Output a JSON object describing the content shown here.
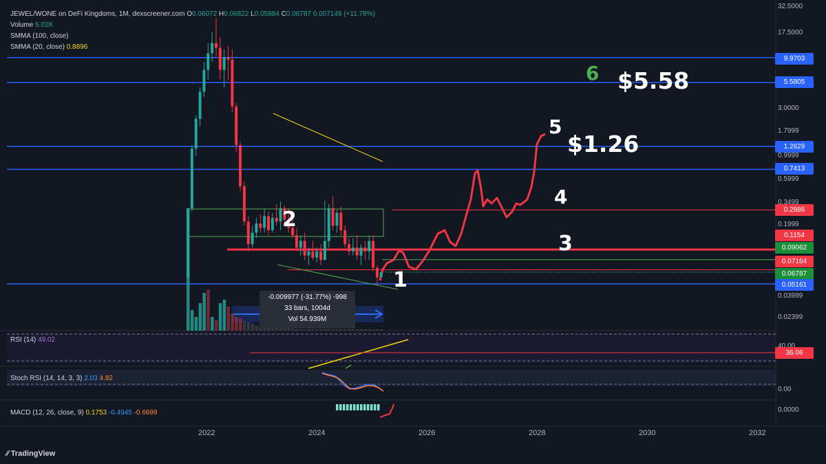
{
  "header": {
    "symbol": "JEWEL/WONE on DeFi Kingdoms, 1M, dexscreener.com",
    "ohlc": [
      {
        "k": "O",
        "v": "0.06072"
      },
      {
        "k": "H",
        "v": "0.06822"
      },
      {
        "k": "L",
        "v": "0.05884"
      },
      {
        "k": "C",
        "v": "0.06787"
      }
    ],
    "change": "0.007149 (+11.78%)",
    "volume_label": "Volume",
    "volume_value": "5.02K",
    "smma100_label": "SMMA (100, close)",
    "smma20_label": "SMMA (20, close)",
    "smma20_value": "0.8896"
  },
  "price_axis": [
    "32.5000",
    "17.5000",
    "3.0000",
    "1.7999",
    "0.9999",
    "0.5999",
    "0.3499",
    "0.1999",
    "0.03999",
    "0.02399"
  ],
  "price_tags": [
    {
      "text": "9.9703",
      "color": "#2962ff"
    },
    {
      "text": "5.5805",
      "color": "#2962ff"
    },
    {
      "text": "1.2629",
      "color": "#2962ff"
    },
    {
      "text": "0.7413",
      "color": "#2962ff"
    },
    {
      "text": "0.2886",
      "color": "#f23645"
    },
    {
      "text": "0.1154",
      "color": "#f23645"
    },
    {
      "text": "0.09062",
      "color": "#1b8f3a"
    },
    {
      "text": "0.07164",
      "color": "#f23645"
    },
    {
      "text": "0.06787",
      "color": "#1b8f3a"
    },
    {
      "text": "0.05161",
      "color": "#2962ff"
    }
  ],
  "annotations": {
    "w1": "1",
    "w2": "2",
    "w3": "3",
    "w4": "4",
    "w5": "5",
    "w6": "6",
    "target1": "$1.26",
    "target2": "$5.58"
  },
  "measure": {
    "line1": "-0.009977 (-31.77%) -998",
    "line2": "33 bars, 1004d",
    "line3": "Vol 54.939M"
  },
  "rsi": {
    "label": "RSI (14)",
    "value": "49.02",
    "axis_top": "40.00",
    "axis_tag": "36.06"
  },
  "stoch": {
    "label": "Stoch RSI (14, 14, 3, 3)",
    "k": "2.03",
    "d": "4.82",
    "axis": "0.00"
  },
  "macd": {
    "label": "MACD (12, 26, close, 9)",
    "macd": "0.1753",
    "signal": "-0.4945",
    "hist": "-0.6699",
    "axis": "0.0000"
  },
  "time_axis": [
    "2022",
    "2024",
    "2026",
    "2028",
    "2030",
    "2032"
  ],
  "footer": {
    "brand": "TradingView"
  },
  "colors": {
    "up": "#26a69a",
    "down": "#f23645",
    "blue_line": "#2962ff",
    "red_line": "#f23645",
    "bg": "#131722"
  },
  "chart_data": {
    "type": "candlestick",
    "timeframe": "1M",
    "candles": [
      {
        "o": 0.06,
        "h": 0.06,
        "l": 0.06,
        "c": 0.3
      },
      {
        "o": 0.3,
        "h": 1.3,
        "l": 0.28,
        "c": 1.2
      },
      {
        "o": 1.2,
        "h": 2.6,
        "l": 1.0,
        "c": 2.4
      },
      {
        "o": 2.4,
        "h": 5.0,
        "l": 2.0,
        "c": 4.5
      },
      {
        "o": 4.5,
        "h": 9.0,
        "l": 4.0,
        "c": 7.5
      },
      {
        "o": 7.5,
        "h": 14.0,
        "l": 6.0,
        "c": 11.0
      },
      {
        "o": 11.0,
        "h": 18.0,
        "l": 9.0,
        "c": 14.0
      },
      {
        "o": 14.0,
        "h": 25.0,
        "l": 10.0,
        "c": 12.5
      },
      {
        "o": 12.5,
        "h": 16.0,
        "l": 6.0,
        "c": 7.5
      },
      {
        "o": 7.5,
        "h": 12.0,
        "l": 5.0,
        "c": 10.0
      },
      {
        "o": 10.0,
        "h": 13.0,
        "l": 6.0,
        "c": 9.5
      },
      {
        "o": 9.5,
        "h": 12.0,
        "l": 2.8,
        "c": 3.2
      },
      {
        "o": 3.2,
        "h": 3.5,
        "l": 1.1,
        "c": 1.3
      },
      {
        "o": 1.3,
        "h": 1.4,
        "l": 0.45,
        "c": 0.5
      },
      {
        "o": 0.5,
        "h": 0.55,
        "l": 0.2,
        "c": 0.22
      },
      {
        "o": 0.22,
        "h": 0.25,
        "l": 0.11,
        "c": 0.13
      },
      {
        "o": 0.13,
        "h": 0.2,
        "l": 0.12,
        "c": 0.17
      },
      {
        "o": 0.17,
        "h": 0.24,
        "l": 0.15,
        "c": 0.21
      },
      {
        "o": 0.21,
        "h": 0.26,
        "l": 0.17,
        "c": 0.19
      },
      {
        "o": 0.19,
        "h": 0.3,
        "l": 0.17,
        "c": 0.25
      },
      {
        "o": 0.25,
        "h": 0.28,
        "l": 0.16,
        "c": 0.18
      },
      {
        "o": 0.18,
        "h": 0.27,
        "l": 0.17,
        "c": 0.24
      },
      {
        "o": 0.24,
        "h": 0.33,
        "l": 0.2,
        "c": 0.22
      },
      {
        "o": 0.22,
        "h": 0.35,
        "l": 0.18,
        "c": 0.3
      },
      {
        "o": 0.3,
        "h": 0.32,
        "l": 0.21,
        "c": 0.23
      },
      {
        "o": 0.23,
        "h": 0.3,
        "l": 0.17,
        "c": 0.19
      },
      {
        "o": 0.19,
        "h": 0.28,
        "l": 0.15,
        "c": 0.16
      },
      {
        "o": 0.16,
        "h": 0.19,
        "l": 0.11,
        "c": 0.12
      },
      {
        "o": 0.12,
        "h": 0.16,
        "l": 0.1,
        "c": 0.14
      },
      {
        "o": 0.14,
        "h": 0.17,
        "l": 0.09,
        "c": 0.1
      },
      {
        "o": 0.1,
        "h": 0.12,
        "l": 0.08,
        "c": 0.11
      },
      {
        "o": 0.11,
        "h": 0.14,
        "l": 0.09,
        "c": 0.095
      },
      {
        "o": 0.095,
        "h": 0.12,
        "l": 0.085,
        "c": 0.11
      },
      {
        "o": 0.11,
        "h": 0.13,
        "l": 0.08,
        "c": 0.09
      },
      {
        "o": 0.09,
        "h": 0.36,
        "l": 0.09,
        "c": 0.14
      },
      {
        "o": 0.14,
        "h": 0.33,
        "l": 0.12,
        "c": 0.3
      },
      {
        "o": 0.3,
        "h": 0.4,
        "l": 0.18,
        "c": 0.2
      },
      {
        "o": 0.2,
        "h": 0.29,
        "l": 0.17,
        "c": 0.27
      },
      {
        "o": 0.27,
        "h": 0.31,
        "l": 0.16,
        "c": 0.18
      },
      {
        "o": 0.18,
        "h": 0.2,
        "l": 0.12,
        "c": 0.13
      },
      {
        "o": 0.13,
        "h": 0.15,
        "l": 0.1,
        "c": 0.11
      },
      {
        "o": 0.11,
        "h": 0.15,
        "l": 0.1,
        "c": 0.12
      },
      {
        "o": 0.12,
        "h": 0.16,
        "l": 0.09,
        "c": 0.1
      },
      {
        "o": 0.1,
        "h": 0.13,
        "l": 0.08,
        "c": 0.12
      },
      {
        "o": 0.12,
        "h": 0.14,
        "l": 0.09,
        "c": 0.11
      },
      {
        "o": 0.11,
        "h": 0.16,
        "l": 0.09,
        "c": 0.14
      },
      {
        "o": 0.14,
        "h": 0.16,
        "l": 0.07,
        "c": 0.075
      },
      {
        "o": 0.075,
        "h": 0.08,
        "l": 0.05,
        "c": 0.06
      },
      {
        "o": 0.06072,
        "h": 0.06822,
        "l": 0.05884,
        "c": 0.06787
      }
    ],
    "horizontal_levels": [
      9.9703,
      5.5805,
      1.2629,
      0.7413,
      0.2886,
      0.1154,
      0.09062,
      0.07164,
      0.05161
    ],
    "y_scale": "log"
  }
}
